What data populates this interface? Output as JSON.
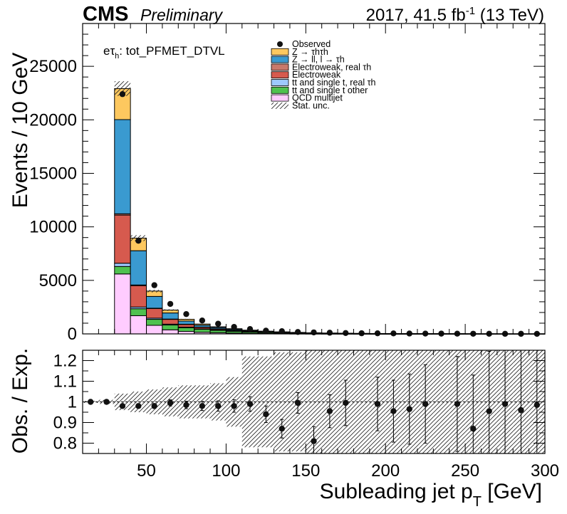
{
  "header": {
    "experiment": "CMS",
    "status": "Preliminary",
    "lumi_prefix": "2017, 41.5 fb",
    "lumi_exp": "-1",
    "lumi_suffix": " (13 TeV)"
  },
  "category_label": {
    "prefix": "eτ",
    "sub": "h",
    "suffix": ": tot_PFMET_DTVL"
  },
  "chart_data": [
    {
      "type": "bar",
      "stacked": true,
      "ylabel": "Events / 10 GeV",
      "xlim": [
        10,
        300
      ],
      "ylim": [
        0,
        29000
      ],
      "yticks": [
        0,
        5000,
        10000,
        15000,
        20000,
        25000
      ],
      "xticks": [
        50,
        100,
        150,
        200,
        250,
        300
      ],
      "legend_position": "top-right",
      "bin_width": 10,
      "bin_low_edges": [
        30,
        40,
        50,
        60,
        70,
        80,
        90,
        100,
        110,
        120,
        130,
        140,
        150,
        160,
        170,
        180,
        190,
        200,
        210,
        220,
        230,
        240,
        250,
        260,
        270,
        280,
        290
      ],
      "series": [
        {
          "name": "QCD multijet",
          "color": "#ffccff",
          "values": [
            5600,
            1700,
            800,
            380,
            230,
            150,
            110,
            80,
            55,
            40,
            30,
            22,
            16,
            12,
            9,
            7,
            5,
            4,
            3,
            3,
            2,
            2,
            1,
            1,
            1,
            1,
            1
          ]
        },
        {
          "name": "tt and single t other",
          "color": "#4fc14f",
          "values": [
            700,
            650,
            560,
            450,
            350,
            280,
            220,
            170,
            130,
            100,
            75,
            55,
            42,
            32,
            25,
            19,
            15,
            12,
            9,
            7,
            6,
            5,
            4,
            3,
            3,
            2,
            2
          ]
        },
        {
          "name": "tt and single t, real τh",
          "color": "#9ec9ff",
          "values": [
            300,
            160,
            110,
            80,
            55,
            40,
            30,
            22,
            16,
            12,
            9,
            7,
            5,
            4,
            3,
            2,
            2,
            2,
            1,
            1,
            1,
            1,
            1,
            1,
            0,
            0,
            0
          ]
        },
        {
          "name": "Electroweak",
          "color": "#d65a4e",
          "values": [
            4500,
            2000,
            900,
            460,
            260,
            160,
            110,
            75,
            52,
            36,
            26,
            19,
            14,
            10,
            8,
            6,
            5,
            4,
            3,
            2,
            2,
            2,
            1,
            1,
            1,
            1,
            1
          ]
        },
        {
          "name": "Electroweak, real τh",
          "color": "#c8796b",
          "values": [
            120,
            60,
            30,
            15,
            9,
            6,
            4,
            3,
            2,
            2,
            1,
            1,
            1,
            1,
            1,
            0,
            0,
            0,
            0,
            0,
            0,
            0,
            0,
            0,
            0,
            0,
            0
          ]
        },
        {
          "name": "Z → ll, l → τh",
          "color": "#3a9ad0",
          "values": [
            8800,
            3200,
            1100,
            570,
            300,
            180,
            120,
            85,
            60,
            42,
            30,
            22,
            16,
            12,
            9,
            7,
            5,
            4,
            3,
            3,
            2,
            2,
            1,
            1,
            1,
            1,
            1
          ]
        },
        {
          "name": "Z → τhτh",
          "color": "#fdc85f",
          "values": [
            2900,
            1180,
            500,
            270,
            160,
            104,
            68,
            50,
            35,
            25,
            19,
            14,
            11,
            8,
            6,
            5,
            4,
            3,
            3,
            2,
            2,
            1,
            1,
            1,
            1,
            1,
            1
          ]
        }
      ],
      "observed": {
        "name": "Observed",
        "x": [
          35,
          45,
          55,
          65,
          75,
          85,
          95,
          105,
          115,
          125,
          135,
          145,
          155,
          165,
          175,
          185,
          195,
          205,
          215,
          225,
          235,
          245,
          255,
          265,
          275,
          285,
          295
        ],
        "values": [
          22400,
          8700,
          4550,
          2800,
          1850,
          1250,
          950,
          650,
          450,
          300,
          250,
          180,
          140,
          110,
          80,
          60,
          55,
          45,
          35,
          30,
          25,
          20,
          15,
          12,
          10,
          8,
          6
        ]
      },
      "stat_unc_label": "Stat. unc.",
      "stat_unc_fraction": 0.03
    },
    {
      "type": "scatter",
      "xlabel_main": "Subleading jet p",
      "xlabel_sub": "T",
      "xlabel_unit": " [GeV]",
      "ylabel": "Obs. / Exp.",
      "xlim": [
        10,
        300
      ],
      "ylim": [
        0.75,
        1.25
      ],
      "yticks": [
        0.8,
        0.9,
        1.0,
        1.1,
        1.2
      ],
      "ytick_labels": [
        "0.8",
        "0.9",
        "1",
        "1.1",
        "1.2"
      ],
      "xticks": [
        50,
        100,
        150,
        200,
        250,
        300
      ],
      "reference_line": 1.0,
      "points": {
        "x": [
          15,
          25,
          35,
          45,
          55,
          65,
          75,
          85,
          95,
          105,
          115,
          125,
          135,
          145,
          155,
          165,
          175,
          195,
          205,
          215,
          225,
          245,
          255,
          265,
          275,
          285,
          295
        ],
        "y": [
          1.0,
          1.0,
          0.98,
          0.98,
          0.98,
          0.995,
          0.985,
          0.98,
          0.98,
          0.98,
          0.99,
          0.94,
          0.87,
          0.995,
          0.81,
          0.955,
          0.995,
          0.99,
          0.955,
          0.965,
          0.99,
          0.99,
          0.87,
          0.955,
          0.99,
          0.96,
          0.985
        ],
        "err": [
          0.002,
          0.003,
          0.007,
          0.01,
          0.012,
          0.015,
          0.018,
          0.022,
          0.025,
          0.03,
          0.035,
          0.04,
          0.045,
          0.05,
          0.07,
          0.08,
          0.11,
          0.13,
          0.15,
          0.17,
          0.19,
          0.23,
          0.26,
          0.29,
          0.32,
          0.36,
          0.4
        ]
      },
      "uncertainty_band": {
        "x_low": [
          10,
          20,
          30,
          40,
          50,
          60,
          70,
          80,
          90,
          100,
          110,
          120,
          130,
          140,
          150,
          160,
          170,
          180,
          190,
          200,
          210,
          220,
          230,
          240,
          250,
          260,
          270,
          280,
          290
        ],
        "half_width": [
          0.005,
          0.01,
          0.04,
          0.05,
          0.06,
          0.07,
          0.08,
          0.08,
          0.09,
          0.12,
          0.22,
          0.22,
          0.24,
          0.24,
          0.26,
          0.26,
          0.27,
          0.28,
          0.28,
          0.3,
          0.3,
          0.3,
          0.3,
          0.3,
          0.3,
          0.3,
          0.3,
          0.3,
          0.3
        ]
      }
    }
  ]
}
